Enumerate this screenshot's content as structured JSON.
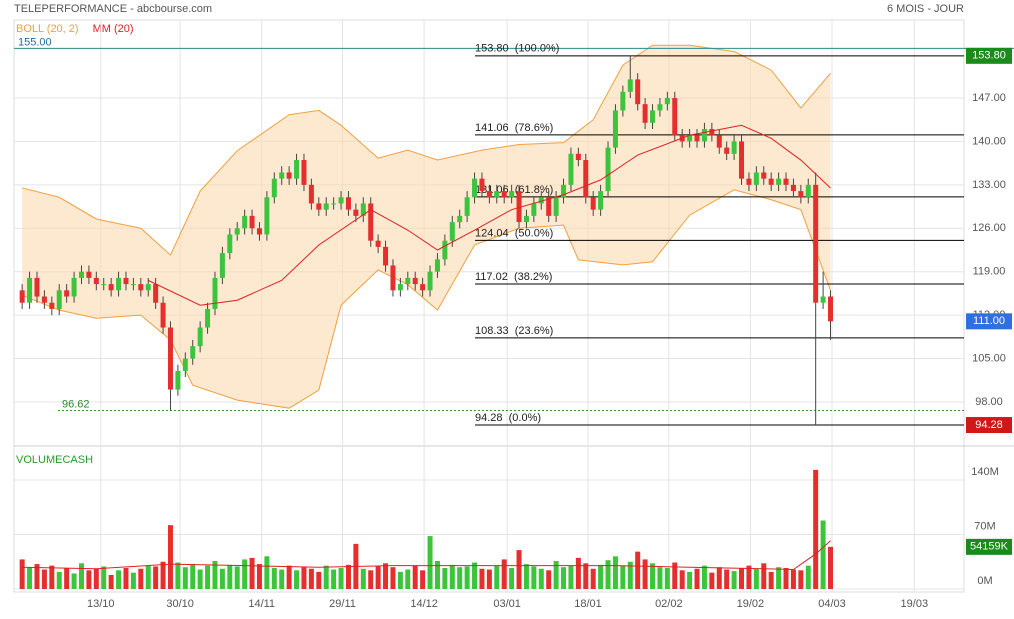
{
  "chart_data": {
    "type": "candlestick",
    "title": "TELEPERFORMANCE - abcbourse.com",
    "period": "6 MOIS - JOUR",
    "indicators": [
      {
        "name": "BOLL (20, 2)",
        "color": "#f0a040"
      },
      {
        "name": "MM (20)",
        "color": "#e02020"
      }
    ],
    "volume_title": "VOLUMECASH",
    "up_color": "#3cc43c",
    "down_color": "#e52e2e",
    "xlim": [
      -1.1,
      127
    ],
    "xticks": [
      {
        "value": 10.6,
        "label": "13/10"
      },
      {
        "value": 21.3,
        "label": "30/10"
      },
      {
        "value": 32.3,
        "label": "14/11"
      },
      {
        "value": 43.2,
        "label": "29/11"
      },
      {
        "value": 54.2,
        "label": "14/12"
      },
      {
        "value": 65.4,
        "label": "03/01"
      },
      {
        "value": 76.3,
        "label": "18/01"
      },
      {
        "value": 87.2,
        "label": "02/02"
      },
      {
        "value": 98.2,
        "label": "19/02"
      },
      {
        "value": 109.2,
        "label": "04/03"
      },
      {
        "value": 120.3,
        "label": "19/03"
      }
    ],
    "ylim": [
      91.87,
      155.06
    ],
    "yticks": [
      {
        "value": 98,
        "label": "98.00"
      },
      {
        "value": 105,
        "label": "105.00"
      },
      {
        "value": 112,
        "label": "112.00"
      },
      {
        "value": 119,
        "label": "119.00"
      },
      {
        "value": 126,
        "label": "126.00"
      },
      {
        "value": 133,
        "label": "133.00"
      },
      {
        "value": 140,
        "label": "140.00"
      },
      {
        "value": 147,
        "label": "147.00"
      }
    ],
    "vlim": [
      0,
      176
    ],
    "vticks": [
      {
        "value": 0,
        "label": "0M"
      },
      {
        "value": 70,
        "label": "70M"
      },
      {
        "value": 140,
        "label": "140M"
      }
    ],
    "open": [
      116,
      114,
      118,
      115,
      114,
      113,
      116,
      115,
      118,
      119,
      118,
      117,
      117,
      116,
      118,
      117,
      117,
      116,
      117,
      114,
      110,
      100,
      103,
      105,
      107,
      110,
      113,
      118,
      122,
      125,
      126,
      128,
      126,
      125,
      131,
      134,
      135,
      134,
      137,
      133,
      130,
      129,
      130,
      130,
      131,
      129,
      128,
      130,
      124,
      123,
      120,
      116,
      117,
      118,
      117,
      116,
      119,
      121,
      124,
      127,
      128,
      131,
      134,
      132,
      131,
      132,
      131,
      132,
      127,
      128,
      130,
      131,
      128,
      131,
      133,
      138,
      137,
      131,
      129,
      132,
      139,
      145,
      148,
      150,
      146,
      143,
      145,
      146,
      147,
      141,
      140,
      141,
      140,
      142,
      141,
      139,
      138,
      140,
      134,
      133,
      135,
      134,
      133,
      134,
      133,
      132,
      131,
      133,
      114,
      115
    ],
    "high": [
      117,
      119,
      119,
      116,
      115,
      117,
      117,
      119,
      120,
      120,
      119,
      118,
      118,
      119,
      119,
      118,
      118,
      118,
      118,
      115,
      111,
      104,
      106,
      108,
      111,
      114,
      119,
      123,
      126,
      127,
      129,
      129,
      127,
      132,
      135,
      136,
      136,
      138,
      138,
      134,
      131,
      131,
      131,
      132,
      132,
      130,
      131,
      131,
      125,
      124,
      121,
      118,
      119,
      119,
      118,
      120,
      122,
      125,
      128,
      129,
      132,
      135,
      135,
      133,
      133,
      133,
      133,
      133,
      129,
      131,
      132,
      132,
      132,
      134,
      139,
      139,
      138,
      132,
      133,
      140,
      146,
      149,
      153.8,
      151,
      147,
      146,
      147,
      148,
      148,
      142,
      142,
      142,
      143,
      143,
      142,
      140,
      141,
      141,
      135,
      136,
      136,
      135,
      135,
      135,
      134,
      133,
      134,
      135,
      119,
      116
    ],
    "low": [
      113,
      113,
      114,
      113,
      112,
      112,
      114,
      114,
      117,
      117,
      116,
      116,
      115,
      115,
      116,
      116,
      115,
      115,
      113,
      109,
      96.62,
      99,
      102,
      104,
      106,
      109,
      112,
      117,
      121,
      124,
      125,
      125,
      124,
      124,
      130,
      133,
      133,
      133,
      132,
      129,
      128,
      128,
      129,
      129,
      128,
      127,
      127,
      123,
      122,
      119,
      115,
      115,
      116,
      116,
      115,
      115,
      118,
      120,
      123,
      126,
      127,
      130,
      131,
      130,
      130,
      130,
      130,
      126,
      126,
      127,
      129,
      127,
      127,
      130,
      132,
      136,
      130,
      128,
      128,
      131,
      138,
      144,
      147,
      145,
      142,
      142,
      144,
      145,
      140,
      139,
      139,
      139,
      139,
      140,
      138,
      137,
      137,
      133,
      132,
      132,
      133,
      132,
      132,
      132,
      131,
      130,
      130,
      94.28,
      113,
      108
    ],
    "close": [
      114,
      118,
      115,
      114,
      113,
      116,
      115,
      118,
      119,
      118,
      117,
      117,
      116,
      118,
      117,
      117,
      116,
      117,
      114,
      110,
      100,
      103,
      105,
      107,
      110,
      113,
      118,
      122,
      125,
      126,
      128,
      126,
      125,
      131,
      134,
      135,
      134,
      137,
      133,
      130,
      129,
      130,
      130,
      131,
      129,
      128,
      130,
      124,
      123,
      120,
      116,
      117,
      118,
      117,
      116,
      119,
      121,
      124,
      127,
      128,
      131,
      134,
      132,
      131,
      132,
      131,
      132,
      127,
      128,
      130,
      131,
      128,
      131,
      133,
      138,
      137,
      131,
      129,
      132,
      139,
      145,
      148,
      150,
      146,
      143,
      145,
      146,
      147,
      141,
      140,
      141,
      140,
      142,
      141,
      139,
      138,
      140,
      134,
      133,
      135,
      134,
      133,
      134,
      133,
      132,
      131,
      133,
      114,
      115,
      111
    ],
    "volume": [
      38,
      28,
      32,
      25,
      30,
      22,
      27,
      20,
      33,
      24,
      26,
      29,
      18,
      24,
      27,
      21,
      26,
      30,
      29,
      35,
      82,
      34,
      28,
      32,
      25,
      30,
      36,
      26,
      31,
      29,
      38,
      40,
      32,
      42,
      27,
      25,
      30,
      24,
      28,
      26,
      22,
      30,
      25,
      27,
      31,
      58,
      26,
      24,
      29,
      33,
      28,
      22,
      25,
      30,
      24,
      68,
      36,
      27,
      31,
      28,
      29,
      34,
      26,
      25,
      30,
      38,
      27,
      50,
      32,
      29,
      26,
      24,
      36,
      28,
      30,
      40,
      33,
      26,
      31,
      37,
      42,
      30,
      35,
      48,
      38,
      33,
      28,
      27,
      34,
      24,
      22,
      26,
      30,
      21,
      28,
      25,
      23,
      27,
      30,
      26,
      33,
      22,
      28,
      27,
      25,
      24,
      30,
      153,
      88,
      54.159
    ],
    "boll_upper": {
      "x": [
        0,
        5,
        10,
        16,
        20,
        24,
        29,
        36,
        40,
        43,
        48,
        52,
        56,
        62,
        67,
        73,
        77,
        81,
        85,
        90,
        96,
        101,
        105,
        109
      ],
      "values": [
        132.5,
        131,
        127.5,
        126,
        121.7,
        132,
        138.5,
        144.3,
        145,
        142.6,
        137.3,
        138.6,
        137,
        138.6,
        139.5,
        139.8,
        143.5,
        152.3,
        155.5,
        155.5,
        154.5,
        151.5,
        145.4,
        151
      ]
    },
    "boll_lower": {
      "x": [
        0,
        5,
        10,
        16,
        20,
        23,
        29,
        36,
        40,
        43,
        48,
        52,
        56,
        61,
        67,
        73,
        75,
        81,
        85,
        90,
        96,
        101,
        105,
        109
      ],
      "values": [
        115.2,
        112.8,
        111.5,
        112,
        108,
        100.7,
        98.3,
        97,
        99.9,
        113.6,
        119.3,
        116.9,
        112.8,
        123.3,
        126,
        126.5,
        120.9,
        120.1,
        120.6,
        128.1,
        132.2,
        130.6,
        129,
        116
      ]
    },
    "mm20": {
      "x": [
        17,
        24,
        29,
        35,
        40,
        47,
        52,
        56,
        61,
        66,
        73,
        78,
        83,
        90,
        97,
        101,
        105,
        109
      ],
      "values": [
        117.6,
        113.6,
        114.4,
        117.6,
        123.3,
        129,
        125.7,
        122.5,
        125.7,
        129,
        131.4,
        133.8,
        137.8,
        141,
        142.6,
        140.5,
        137,
        132.5
      ]
    },
    "volume_ma": {
      "x": [
        0,
        10,
        20,
        30,
        40,
        50,
        60,
        70,
        80,
        90,
        100,
        104,
        107,
        109
      ],
      "values": [
        28,
        26,
        32,
        30,
        28,
        30,
        30,
        30,
        30,
        28,
        26,
        25,
        45,
        62
      ]
    },
    "fib_levels": [
      {
        "value": 153.8,
        "label": "153.80  (100.0%)"
      },
      {
        "value": 141.06,
        "label": "141.06  (78.6%)"
      },
      {
        "value": 131.06,
        "label": "131.06  (61.8%)"
      },
      {
        "value": 124.04,
        "label": "124.04  (50.0%)"
      },
      {
        "value": 117.02,
        "label": "117.02  (38.2%)"
      },
      {
        "value": 108.33,
        "label": "108.33  (23.6%)"
      },
      {
        "value": 94.28,
        "label": "94.28  (0.0%)"
      }
    ],
    "top_line": {
      "value": 155,
      "label": "155.00"
    },
    "low_line": {
      "value": 96.62,
      "label": "96.62"
    },
    "price_tags": [
      {
        "value": 153.8,
        "label": "153.80",
        "color": "#1a8a1a"
      },
      {
        "value": 111,
        "label": "111.00",
        "color": "#2f6fe0"
      },
      {
        "value": 94.28,
        "label": "94.28",
        "color": "#d01818"
      }
    ],
    "volume_tag": {
      "value": 54.159,
      "label": "54159K",
      "color": "#1a8a1a"
    }
  }
}
